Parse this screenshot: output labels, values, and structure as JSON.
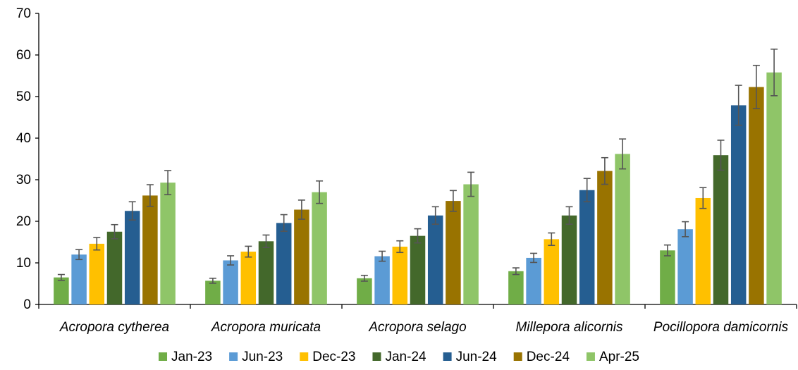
{
  "chart_data": {
    "type": "bar",
    "categories": [
      "Acropora cytherea",
      "Acropora muricata",
      "Acropora selago",
      "Millepora alicornis",
      "Pocillopora damicornis"
    ],
    "ylim": [
      0,
      70
    ],
    "yticks": [
      0,
      10,
      20,
      30,
      40,
      50,
      60,
      70
    ],
    "grid": false,
    "legend": "bottom",
    "error_bars": true,
    "series": [
      {
        "name": "Jan-23",
        "color": "#70ad47",
        "values": [
          6.5,
          5.7,
          6.3,
          8.0,
          13.0
        ],
        "errors": [
          0.7,
          0.6,
          0.7,
          0.8,
          1.3
        ]
      },
      {
        "name": "Jun-23",
        "color": "#5b9bd5",
        "values": [
          12.0,
          10.6,
          11.6,
          11.2,
          18.1
        ],
        "errors": [
          1.2,
          1.1,
          1.2,
          1.1,
          1.8
        ]
      },
      {
        "name": "Dec-23",
        "color": "#ffc000",
        "values": [
          14.6,
          12.7,
          13.9,
          15.7,
          25.6
        ],
        "errors": [
          1.5,
          1.3,
          1.4,
          1.5,
          2.5
        ]
      },
      {
        "name": "Jan-24",
        "color": "#43682b",
        "values": [
          17.5,
          15.2,
          16.5,
          21.4,
          35.9
        ],
        "errors": [
          1.7,
          1.5,
          1.7,
          2.1,
          3.6
        ]
      },
      {
        "name": "Jun-24",
        "color": "#255e91",
        "values": [
          22.5,
          19.6,
          21.4,
          27.5,
          47.9
        ],
        "errors": [
          2.2,
          2.0,
          2.1,
          2.8,
          4.8
        ]
      },
      {
        "name": "Dec-24",
        "color": "#997300",
        "values": [
          26.2,
          22.8,
          24.9,
          32.1,
          52.3
        ],
        "errors": [
          2.6,
          2.3,
          2.5,
          3.2,
          5.2
        ]
      },
      {
        "name": "Apr-25",
        "color": "#8fc568",
        "values": [
          29.3,
          27.0,
          28.9,
          36.2,
          55.8
        ],
        "errors": [
          2.9,
          2.7,
          2.9,
          3.6,
          5.6
        ]
      }
    ]
  }
}
